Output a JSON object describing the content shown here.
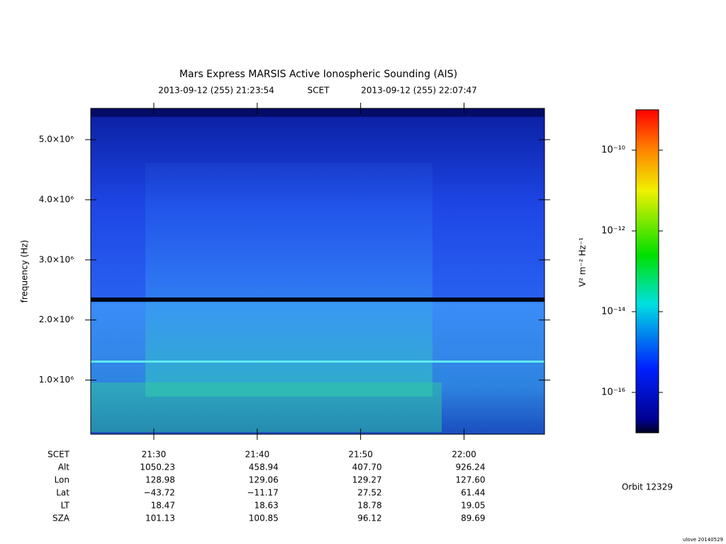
{
  "chart_data": {
    "type": "spectrogram",
    "title": "Mars Express MARSIS Active Ionospheric Sounding (AIS)",
    "subtitle_start": "2013-09-12 (255) 21:23:54",
    "subtitle_mid": "SCET",
    "subtitle_end": "2013-09-12 (255) 22:07:47",
    "ylabel": "frequency (Hz)",
    "xlim": [
      "21:23:54",
      "22:07:47"
    ],
    "xticks": [
      "21:30",
      "21:40",
      "21:50",
      "22:00"
    ],
    "ylim": [
      100000,
      5520000
    ],
    "yticks": [
      {
        "value": 1000000,
        "label": "1.0×10⁶"
      },
      {
        "value": 2000000,
        "label": "2.0×10⁶"
      },
      {
        "value": 3000000,
        "label": "3.0×10⁶"
      },
      {
        "value": 4000000,
        "label": "4.0×10⁶"
      },
      {
        "value": 5000000,
        "label": "5.0×10⁶"
      }
    ],
    "colorbar": {
      "label": "V² m⁻² Hz⁻¹",
      "log": true,
      "lim": [
        1e-17,
        1e-09
      ],
      "ticks": [
        {
          "value": 1e-10,
          "label": "10⁻¹⁰"
        },
        {
          "value": 1e-12,
          "label": "10⁻¹²"
        },
        {
          "value": 1e-14,
          "label": "10⁻¹⁴"
        },
        {
          "value": 1e-16,
          "label": "10⁻¹⁶"
        }
      ]
    },
    "ephemeris": {
      "header": "SCET",
      "rows": [
        {
          "label": "Alt",
          "values": [
            "1050.23",
            "458.94",
            "407.70",
            "926.24"
          ]
        },
        {
          "label": "Lon",
          "values": [
            "128.98",
            "129.06",
            "129.27",
            "127.60"
          ]
        },
        {
          "label": "Lat",
          "values": [
            "−43.72",
            "−11.17",
            "27.52",
            "61.44"
          ]
        },
        {
          "label": "LT",
          "values": [
            "18.47",
            "18.63",
            "18.78",
            "19.05"
          ]
        },
        {
          "label": "SZA",
          "values": [
            "101.13",
            "100.85",
            "96.12",
            "89.69"
          ]
        }
      ]
    },
    "orbit": "Orbit 12329",
    "footer": "ulove 20140529"
  }
}
